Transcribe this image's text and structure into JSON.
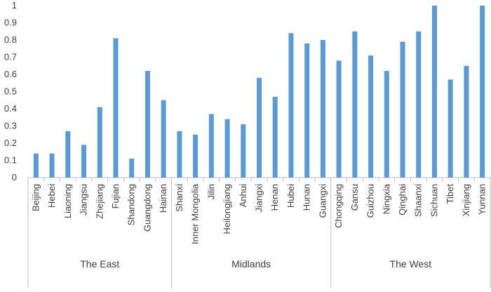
{
  "chart_data": {
    "type": "bar",
    "title": "",
    "xlabel": "",
    "ylabel": "",
    "ylim": [
      0,
      1
    ],
    "yticks": [
      "0",
      "0.1",
      "0.2",
      "0.3",
      "0.4",
      "0.5",
      "0.6",
      "0.7",
      "0.8",
      "0.9",
      "1"
    ],
    "grid": false,
    "legend": "none",
    "bar_color": "#5b9bd5",
    "groups": [
      {
        "name": "The East",
        "categories": [
          "Beijing",
          "Hebei",
          "Liaoning",
          "Jiangsu",
          "Zhejiang",
          "Fujian",
          "Shandong",
          "Guangdong",
          "Hainan"
        ],
        "values": [
          0.14,
          0.14,
          0.27,
          0.19,
          0.41,
          0.81,
          0.11,
          0.62,
          0.45
        ]
      },
      {
        "name": "Midlands",
        "categories": [
          "Shanxi",
          "Inner Mongolia",
          "Jilin",
          "Heilongjiang",
          "Anhui",
          "Jiangxi",
          "Henan",
          "Hubei",
          "Hunan",
          "Guangxi"
        ],
        "values": [
          0.27,
          0.25,
          0.37,
          0.34,
          0.31,
          0.58,
          0.47,
          0.84,
          0.78,
          0.8
        ]
      },
      {
        "name": "The West",
        "categories": [
          "Chongqing",
          "Gansu",
          "Guizhou",
          "Ningxia",
          "Qinghai",
          "Shaanxi",
          "Sichuan",
          "Tibet",
          "Xinjiang",
          "Yunnan"
        ],
        "values": [
          0.68,
          0.85,
          0.71,
          0.62,
          0.79,
          0.85,
          1.0,
          0.57,
          0.65,
          1.0
        ]
      }
    ]
  }
}
